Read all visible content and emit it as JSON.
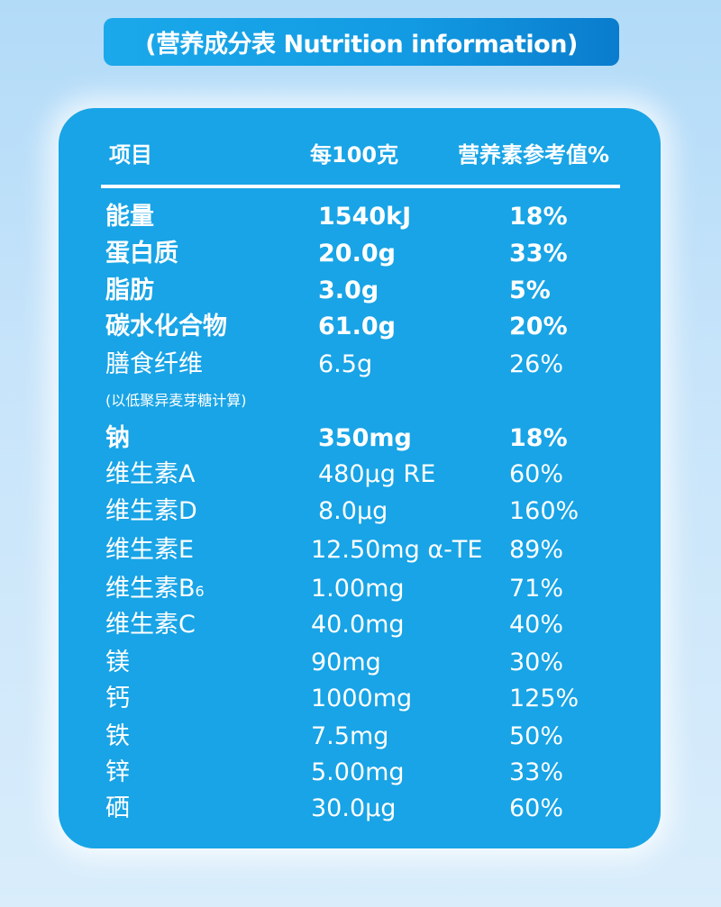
{
  "title": "(营养成分表 Nutrition information)",
  "header": {
    "item": "项目",
    "per100g": "每100克",
    "nrv": "营养素参考值%"
  },
  "rows": [
    {
      "name": "能量",
      "value": "1540kJ",
      "nrv": "18%",
      "bold": true
    },
    {
      "name": "蛋白质",
      "value": "20.0g",
      "nrv": "33%",
      "bold": true
    },
    {
      "name": "脂肪",
      "value": "3.0g",
      "nrv": "5%",
      "bold": true
    },
    {
      "name": "碳水化合物",
      "value": "61.0g",
      "nrv": "20%",
      "bold": true
    },
    {
      "name": "膳食纤维",
      "value": "6.5g",
      "nrv": "26%",
      "bold": false
    },
    {
      "name": "钠",
      "value": "350mg",
      "nrv": "18%",
      "bold": true
    },
    {
      "name": "维生素A",
      "value": "480μg RE",
      "nrv": "60%",
      "bold": false
    },
    {
      "name": "维生素D",
      "value": "8.0μg",
      "nrv": "160%",
      "bold": false
    },
    {
      "name": "维生素E",
      "value": "12.50mg α-TE",
      "nrv": "89%",
      "bold": false
    },
    {
      "name": "维生素B",
      "name_sub": "6",
      "value": "1.00mg",
      "nrv": "71%",
      "bold": false
    },
    {
      "name": "维生素C",
      "value": "40.0mg",
      "nrv": "40%",
      "bold": false
    },
    {
      "name": "镁",
      "value": "90mg",
      "nrv": "30%",
      "bold": false
    },
    {
      "name": "钙",
      "value": "1000mg",
      "nrv": "125%",
      "bold": false
    },
    {
      "name": "铁",
      "value": "7.5mg",
      "nrv": "50%",
      "bold": false
    },
    {
      "name": "锌",
      "value": "5.00mg",
      "nrv": "33%",
      "bold": false
    },
    {
      "name": "硒",
      "value": "30.0μg",
      "nrv": "60%",
      "bold": false
    }
  ],
  "fiber_note": "(以低聚异麦芽糖计算)",
  "colors": {
    "panel": "#18a4e6",
    "banner_start": "#1ba9eb",
    "banner_end": "#0a7ccd",
    "text": "#ffffff"
  }
}
